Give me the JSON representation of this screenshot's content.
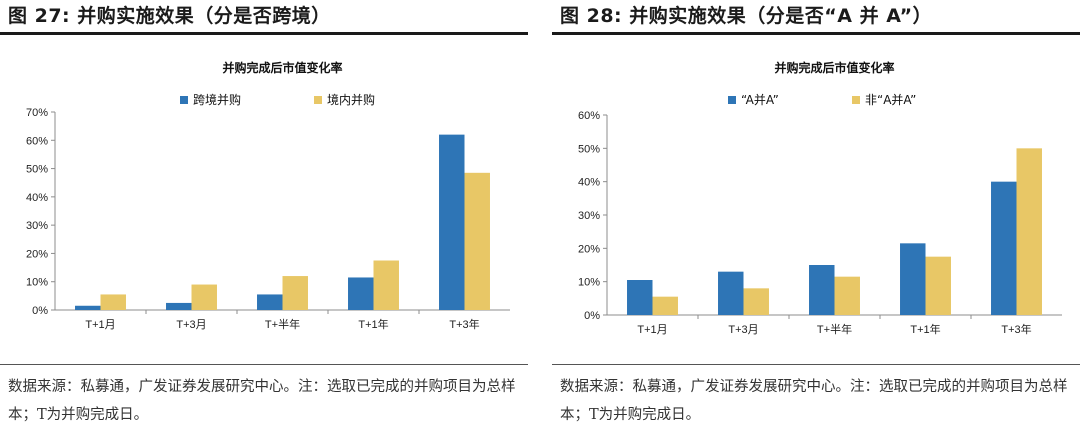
{
  "colors": {
    "blue": "#2e75b6",
    "gold": "#e8c766"
  },
  "charts": [
    {
      "figure_title": "图 27:  并购实施效果（分是否跨境）",
      "source": "数据来源：私募通，广发证券发展研究中心。注：选取已完成的并购项目为总样本；T为并购完成日。"
    },
    {
      "figure_title": "图 28:  并购实施效果（分是否“A 并 A”）",
      "source": "数据来源：私募通，广发证券发展研究中心。注：选取已完成的并购项目为总样本；T为并购完成日。"
    }
  ],
  "chart_data": [
    {
      "type": "bar",
      "title": "并购完成后市值变化率",
      "categories": [
        "T+1月",
        "T+3月",
        "T+半年",
        "T+1年",
        "T+3年"
      ],
      "series": [
        {
          "name": "跨境并购",
          "values": [
            1.5,
            2.5,
            5.5,
            11.5,
            62
          ]
        },
        {
          "name": "境内并购",
          "values": [
            5.5,
            9,
            12,
            17.5,
            48.5
          ]
        }
      ],
      "ylim": [
        0,
        70
      ],
      "yticks": [
        "0%",
        "10%",
        "20%",
        "30%",
        "40%",
        "50%",
        "60%",
        "70%"
      ],
      "legend": "top",
      "grid": false
    },
    {
      "type": "bar",
      "title": "并购完成后市值变化率",
      "categories": [
        "T+1月",
        "T+3月",
        "T+半年",
        "T+1年",
        "T+3年"
      ],
      "series": [
        {
          "name": "“A并A”",
          "values": [
            10.5,
            13,
            15,
            21.5,
            40
          ]
        },
        {
          "name": "非“A并A”",
          "values": [
            5.5,
            8,
            11.5,
            17.5,
            50
          ]
        }
      ],
      "ylim": [
        0,
        60
      ],
      "yticks": [
        "0%",
        "10%",
        "20%",
        "30%",
        "40%",
        "50%",
        "60%"
      ],
      "legend": "top",
      "grid": false
    }
  ]
}
